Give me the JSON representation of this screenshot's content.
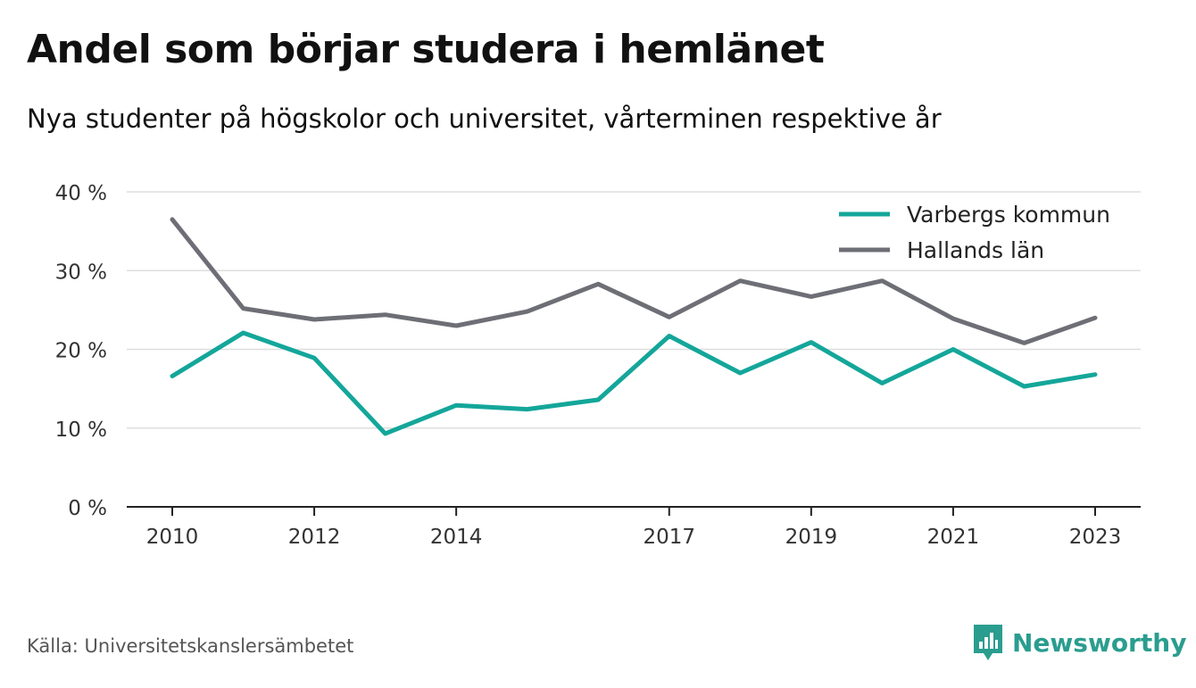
{
  "title": "Andel som börjar studera i hemlänet",
  "subtitle": "Nya studenter på högskolor och universitet, vårterminen respektive år",
  "source": "Källa: Universitetskanslersämbetet",
  "brand": {
    "name": "Newsworthy",
    "icon": "newsworthy-logo-icon",
    "color": "#2a9d8f"
  },
  "chart_data": {
    "type": "line",
    "x": [
      2010,
      2011,
      2012,
      2013,
      2014,
      2015,
      2016,
      2017,
      2018,
      2019,
      2020,
      2021,
      2022,
      2023
    ],
    "x_tick_labels": [
      "2010",
      "2012",
      "2014",
      "2017",
      "2019",
      "2021",
      "2023"
    ],
    "x_tick_values": [
      2010,
      2012,
      2014,
      2017,
      2019,
      2021,
      2023
    ],
    "y_tick_labels": [
      "0 %",
      "10 %",
      "20 %",
      "30 %",
      "40 %"
    ],
    "y_tick_values": [
      0,
      10,
      20,
      30,
      40
    ],
    "ylim": [
      0,
      40
    ],
    "grid": true,
    "legend_position": "top-right",
    "series": [
      {
        "name": "Varbergs kommun",
        "color": "#14a69a",
        "values": [
          16.6,
          22.1,
          18.9,
          9.3,
          12.9,
          12.4,
          13.6,
          21.7,
          17.0,
          20.9,
          15.7,
          20.0,
          15.3,
          16.8
        ]
      },
      {
        "name": "Hallands län",
        "color": "#6e6e76",
        "values": [
          36.5,
          25.2,
          23.8,
          24.4,
          23.0,
          24.8,
          28.3,
          24.1,
          28.7,
          26.7,
          28.7,
          23.9,
          20.8,
          24.0
        ]
      }
    ]
  }
}
